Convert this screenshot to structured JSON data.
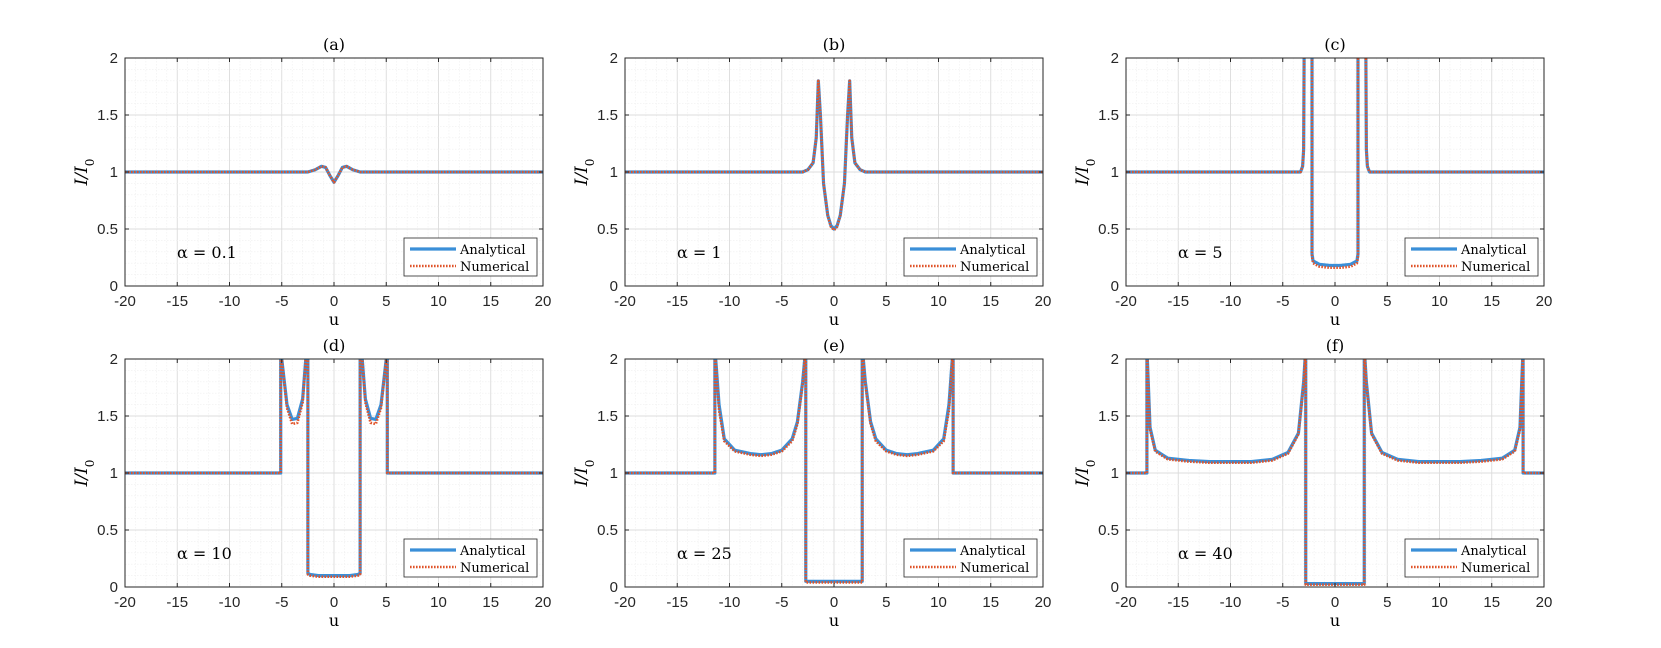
{
  "figure": {
    "legend_entries": [
      {
        "label": "Analytical",
        "color": "#3a8fd8",
        "style": "solid"
      },
      {
        "label": "Numerical",
        "color": "#e0542a",
        "style": "dotted"
      }
    ],
    "ylabel_base": "I",
    "ylabel_denom": "I",
    "ylabel_sub": "0",
    "xlabel": "u"
  },
  "chart_data": [
    {
      "type": "line",
      "panel": "(a)",
      "alpha_label": "α = 0.1",
      "xlabel": "u",
      "ylabel": "I/I0",
      "xlim": [
        -20,
        20
      ],
      "ylim": [
        0,
        2
      ],
      "xticks": [
        -20,
        -15,
        -10,
        -5,
        0,
        5,
        10,
        15,
        20
      ],
      "yticks": [
        0,
        0.5,
        1,
        1.5,
        2
      ],
      "grid": true,
      "legend": "bottom-right",
      "series": [
        {
          "name": "Analytical",
          "x": [
            -20,
            -2.5,
            -1.8,
            -1.2,
            -0.8,
            -0.4,
            0,
            0.4,
            0.8,
            1.2,
            1.8,
            2.5,
            20
          ],
          "y": [
            1,
            1,
            1.02,
            1.05,
            1.04,
            0.97,
            0.91,
            0.97,
            1.04,
            1.05,
            1.02,
            1,
            1
          ]
        },
        {
          "name": "Numerical",
          "x": [
            -20,
            -2.5,
            -1.8,
            -1.2,
            -0.8,
            -0.4,
            0,
            0.4,
            0.8,
            1.2,
            1.8,
            2.5,
            20
          ],
          "y": [
            1,
            1,
            1.02,
            1.05,
            1.04,
            0.97,
            0.91,
            0.97,
            1.04,
            1.05,
            1.02,
            1,
            1
          ]
        }
      ]
    },
    {
      "type": "line",
      "panel": "(b)",
      "alpha_label": "α = 1",
      "xlabel": "u",
      "ylabel": "I/I0",
      "xlim": [
        -20,
        20
      ],
      "ylim": [
        0,
        2
      ],
      "xticks": [
        -20,
        -15,
        -10,
        -5,
        0,
        5,
        10,
        15,
        20
      ],
      "yticks": [
        0,
        0.5,
        1,
        1.5,
        2
      ],
      "grid": true,
      "legend": "bottom-right",
      "series": [
        {
          "name": "Analytical",
          "x": [
            -20,
            -3,
            -2.5,
            -2,
            -1.7,
            -1.5,
            -1.3,
            -1,
            -0.6,
            -0.3,
            0,
            0.3,
            0.6,
            1,
            1.3,
            1.5,
            1.7,
            2,
            2.5,
            3,
            20
          ],
          "y": [
            1,
            1,
            1.02,
            1.08,
            1.3,
            1.8,
            1.5,
            0.9,
            0.62,
            0.53,
            0.5,
            0.53,
            0.62,
            0.9,
            1.5,
            1.8,
            1.3,
            1.08,
            1.02,
            1,
            1
          ]
        },
        {
          "name": "Numerical",
          "x": [
            -20,
            -3,
            -2.5,
            -2,
            -1.7,
            -1.5,
            -1.3,
            -1,
            -0.6,
            -0.3,
            0,
            0.3,
            0.6,
            1,
            1.3,
            1.5,
            1.7,
            2,
            2.5,
            3,
            20
          ],
          "y": [
            1,
            1,
            1.02,
            1.08,
            1.3,
            1.8,
            1.5,
            0.9,
            0.62,
            0.52,
            0.49,
            0.52,
            0.62,
            0.9,
            1.5,
            1.8,
            1.3,
            1.08,
            1.02,
            1,
            1
          ]
        }
      ]
    },
    {
      "type": "line",
      "panel": "(c)",
      "alpha_label": "α = 5",
      "xlabel": "u",
      "ylabel": "I/I0",
      "xlim": [
        -20,
        20
      ],
      "ylim": [
        0,
        2
      ],
      "xticks": [
        -20,
        -15,
        -10,
        -5,
        0,
        5,
        10,
        15,
        20
      ],
      "yticks": [
        0,
        0.5,
        1,
        1.5,
        2
      ],
      "grid": true,
      "legend": "bottom-right",
      "series": [
        {
          "name": "Analytical",
          "x": [
            -20,
            -3.3,
            -3.1,
            -3.0,
            -2.95,
            -2.95,
            -2.2,
            -2.2,
            -2.1,
            -1.5,
            -0.5,
            0,
            0.5,
            1.5,
            2.1,
            2.2,
            2.2,
            2.95,
            2.95,
            3.0,
            3.1,
            3.3,
            20
          ],
          "y": [
            1,
            1,
            1.05,
            1.2,
            2.1,
            2.1,
            2.1,
            0.28,
            0.22,
            0.19,
            0.18,
            0.18,
            0.18,
            0.19,
            0.22,
            0.28,
            2.1,
            2.1,
            2.1,
            1.2,
            1.05,
            1,
            1
          ]
        },
        {
          "name": "Numerical",
          "x": [
            -20,
            -3.3,
            -3.1,
            -3.0,
            -2.95,
            -2.95,
            -2.2,
            -2.2,
            -2.1,
            -1.5,
            -0.5,
            0,
            0.5,
            1.5,
            2.1,
            2.2,
            2.2,
            2.95,
            2.95,
            3.0,
            3.1,
            3.3,
            20
          ],
          "y": [
            1,
            1,
            1.05,
            1.2,
            2.1,
            2.1,
            2.1,
            0.26,
            0.2,
            0.17,
            0.16,
            0.16,
            0.16,
            0.17,
            0.2,
            0.26,
            2.1,
            2.1,
            2.1,
            1.2,
            1.05,
            1,
            1
          ]
        }
      ]
    },
    {
      "type": "line",
      "panel": "(d)",
      "alpha_label": "α = 10",
      "xlabel": "u",
      "ylabel": "I/I0",
      "xlim": [
        -20,
        20
      ],
      "ylim": [
        0,
        2
      ],
      "xticks": [
        -20,
        -15,
        -10,
        -5,
        0,
        5,
        10,
        15,
        20
      ],
      "yticks": [
        0,
        0.5,
        1,
        1.5,
        2
      ],
      "grid": true,
      "legend": "bottom-right",
      "series": [
        {
          "name": "Analytical",
          "x": [
            -20,
            -5.1,
            -5.1,
            -5.0,
            -4.5,
            -4.0,
            -3.5,
            -3.0,
            -2.7,
            -2.5,
            -2.5,
            -2.3,
            -1.5,
            0,
            1.5,
            2.3,
            2.5,
            2.5,
            2.7,
            3.0,
            3.5,
            4.0,
            4.5,
            5.0,
            5.1,
            5.1,
            20
          ],
          "y": [
            1,
            1,
            2.1,
            2.0,
            1.6,
            1.47,
            1.48,
            1.65,
            2.0,
            2.1,
            0.12,
            0.11,
            0.1,
            0.1,
            0.1,
            0.11,
            0.12,
            2.1,
            2.0,
            1.65,
            1.48,
            1.47,
            1.6,
            2.0,
            2.1,
            1,
            1
          ]
        },
        {
          "name": "Numerical",
          "x": [
            -20,
            -5.1,
            -5.1,
            -5.0,
            -4.5,
            -4.0,
            -3.5,
            -3.0,
            -2.7,
            -2.5,
            -2.5,
            -2.3,
            -1.5,
            0,
            1.5,
            2.3,
            2.5,
            2.5,
            2.7,
            3.0,
            3.5,
            4.0,
            4.5,
            5.0,
            5.1,
            5.1,
            20
          ],
          "y": [
            1,
            1,
            2.1,
            2.0,
            1.57,
            1.43,
            1.44,
            1.62,
            2.0,
            2.1,
            0.11,
            0.1,
            0.09,
            0.09,
            0.09,
            0.1,
            0.11,
            2.1,
            2.0,
            1.62,
            1.44,
            1.43,
            1.57,
            2.0,
            2.1,
            1,
            1
          ]
        }
      ]
    },
    {
      "type": "line",
      "panel": "(e)",
      "alpha_label": "α = 25",
      "xlabel": "u",
      "ylabel": "I/I0",
      "xlim": [
        -20,
        20
      ],
      "ylim": [
        0,
        2
      ],
      "xticks": [
        -20,
        -15,
        -10,
        -5,
        0,
        5,
        10,
        15,
        20
      ],
      "yticks": [
        0,
        0.5,
        1,
        1.5,
        2
      ],
      "grid": true,
      "legend": "bottom-right",
      "series": [
        {
          "name": "Analytical",
          "x": [
            -20,
            -11.4,
            -11.4,
            -11.0,
            -10.5,
            -9.5,
            -8,
            -7,
            -6,
            -5,
            -4,
            -3.5,
            -3.0,
            -2.7,
            -2.7,
            -2.4,
            0,
            2.4,
            2.7,
            2.7,
            3.0,
            3.5,
            4,
            5,
            6,
            7,
            8,
            9.5,
            10.5,
            11.0,
            11.4,
            11.4,
            20
          ],
          "y": [
            1,
            1,
            2.1,
            1.6,
            1.3,
            1.2,
            1.17,
            1.16,
            1.17,
            1.2,
            1.3,
            1.45,
            1.8,
            2.1,
            0.05,
            0.05,
            0.05,
            0.05,
            0.05,
            2.1,
            1.8,
            1.45,
            1.3,
            1.2,
            1.17,
            1.16,
            1.17,
            1.2,
            1.3,
            1.6,
            2.1,
            1,
            1
          ]
        },
        {
          "name": "Numerical",
          "x": [
            -20,
            -11.4,
            -11.4,
            -11.0,
            -10.5,
            -9.5,
            -8,
            -7,
            -6,
            -5,
            -4,
            -3.5,
            -3.0,
            -2.7,
            -2.7,
            -2.4,
            0,
            2.4,
            2.7,
            2.7,
            3.0,
            3.5,
            4,
            5,
            6,
            7,
            8,
            9.5,
            10.5,
            11.0,
            11.4,
            11.4,
            20
          ],
          "y": [
            1,
            1,
            2.1,
            1.55,
            1.28,
            1.19,
            1.16,
            1.15,
            1.16,
            1.19,
            1.28,
            1.43,
            1.78,
            2.1,
            0.04,
            0.04,
            0.04,
            0.04,
            0.04,
            2.1,
            1.78,
            1.43,
            1.28,
            1.19,
            1.16,
            1.15,
            1.16,
            1.19,
            1.28,
            1.55,
            2.1,
            1,
            1
          ]
        }
      ]
    },
    {
      "type": "line",
      "panel": "(f)",
      "alpha_label": "α = 40",
      "xlabel": "u",
      "ylabel": "I/I0",
      "xlim": [
        -20,
        20
      ],
      "ylim": [
        0,
        2
      ],
      "xticks": [
        -20,
        -15,
        -10,
        -5,
        0,
        5,
        10,
        15,
        20
      ],
      "yticks": [
        0,
        0.5,
        1,
        1.5,
        2
      ],
      "grid": true,
      "legend": "bottom-right",
      "series": [
        {
          "name": "Analytical",
          "x": [
            -20,
            -18.0,
            -18.0,
            -17.7,
            -17.2,
            -16,
            -14,
            -12,
            -10,
            -8,
            -6,
            -4.5,
            -3.5,
            -3.0,
            -2.8,
            -2.8,
            -2.5,
            0,
            2.5,
            2.8,
            2.8,
            3.0,
            3.5,
            4.5,
            6,
            8,
            10,
            12,
            14,
            16,
            17.2,
            17.7,
            18.0,
            18.0,
            20
          ],
          "y": [
            1,
            1,
            2.1,
            1.4,
            1.2,
            1.13,
            1.11,
            1.1,
            1.1,
            1.1,
            1.12,
            1.18,
            1.35,
            1.8,
            2.1,
            0.03,
            0.03,
            0.03,
            0.03,
            0.03,
            2.1,
            1.8,
            1.35,
            1.18,
            1.12,
            1.1,
            1.1,
            1.1,
            1.11,
            1.13,
            1.2,
            1.4,
            2.1,
            1,
            1
          ]
        },
        {
          "name": "Numerical",
          "x": [
            -20,
            -18.0,
            -18.0,
            -17.7,
            -17.2,
            -16,
            -14,
            -12,
            -10,
            -8,
            -6,
            -4.5,
            -3.5,
            -3.0,
            -2.8,
            -2.8,
            -2.5,
            0,
            2.5,
            2.8,
            2.8,
            3.0,
            3.5,
            4.5,
            6,
            8,
            10,
            12,
            14,
            16,
            17.2,
            17.7,
            18.0,
            18.0,
            20
          ],
          "y": [
            1,
            1,
            2.1,
            1.38,
            1.19,
            1.12,
            1.1,
            1.09,
            1.09,
            1.09,
            1.11,
            1.17,
            1.34,
            1.78,
            2.1,
            0.02,
            0.02,
            0.02,
            0.02,
            0.02,
            2.1,
            1.78,
            1.34,
            1.17,
            1.11,
            1.09,
            1.09,
            1.09,
            1.1,
            1.12,
            1.19,
            1.38,
            2.1,
            1,
            1
          ]
        }
      ]
    }
  ]
}
